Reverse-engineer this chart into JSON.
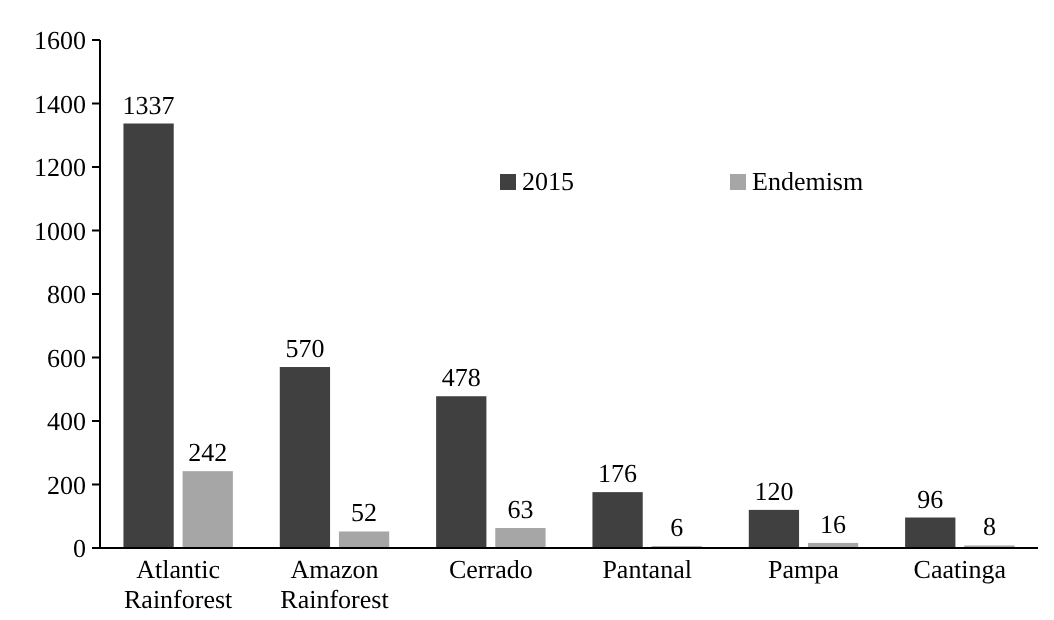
{
  "chart_data": {
    "type": "bar",
    "categories": [
      "Atlantic Rainforest",
      "Amazon Rainforest",
      "Cerrado",
      "Pantanal",
      "Pampa",
      "Caatinga"
    ],
    "series": [
      {
        "name": "2015",
        "color": "#404040",
        "values": [
          1337,
          570,
          478,
          176,
          120,
          96
        ]
      },
      {
        "name": "Endemism",
        "color": "#a6a6a6",
        "values": [
          242,
          52,
          63,
          6,
          16,
          8
        ]
      }
    ],
    "ylim": [
      0,
      1600
    ],
    "yticks": [
      0,
      200,
      400,
      600,
      800,
      1000,
      1200,
      1400,
      1600
    ],
    "data_labels": true,
    "grid": false,
    "legend": "top right"
  }
}
